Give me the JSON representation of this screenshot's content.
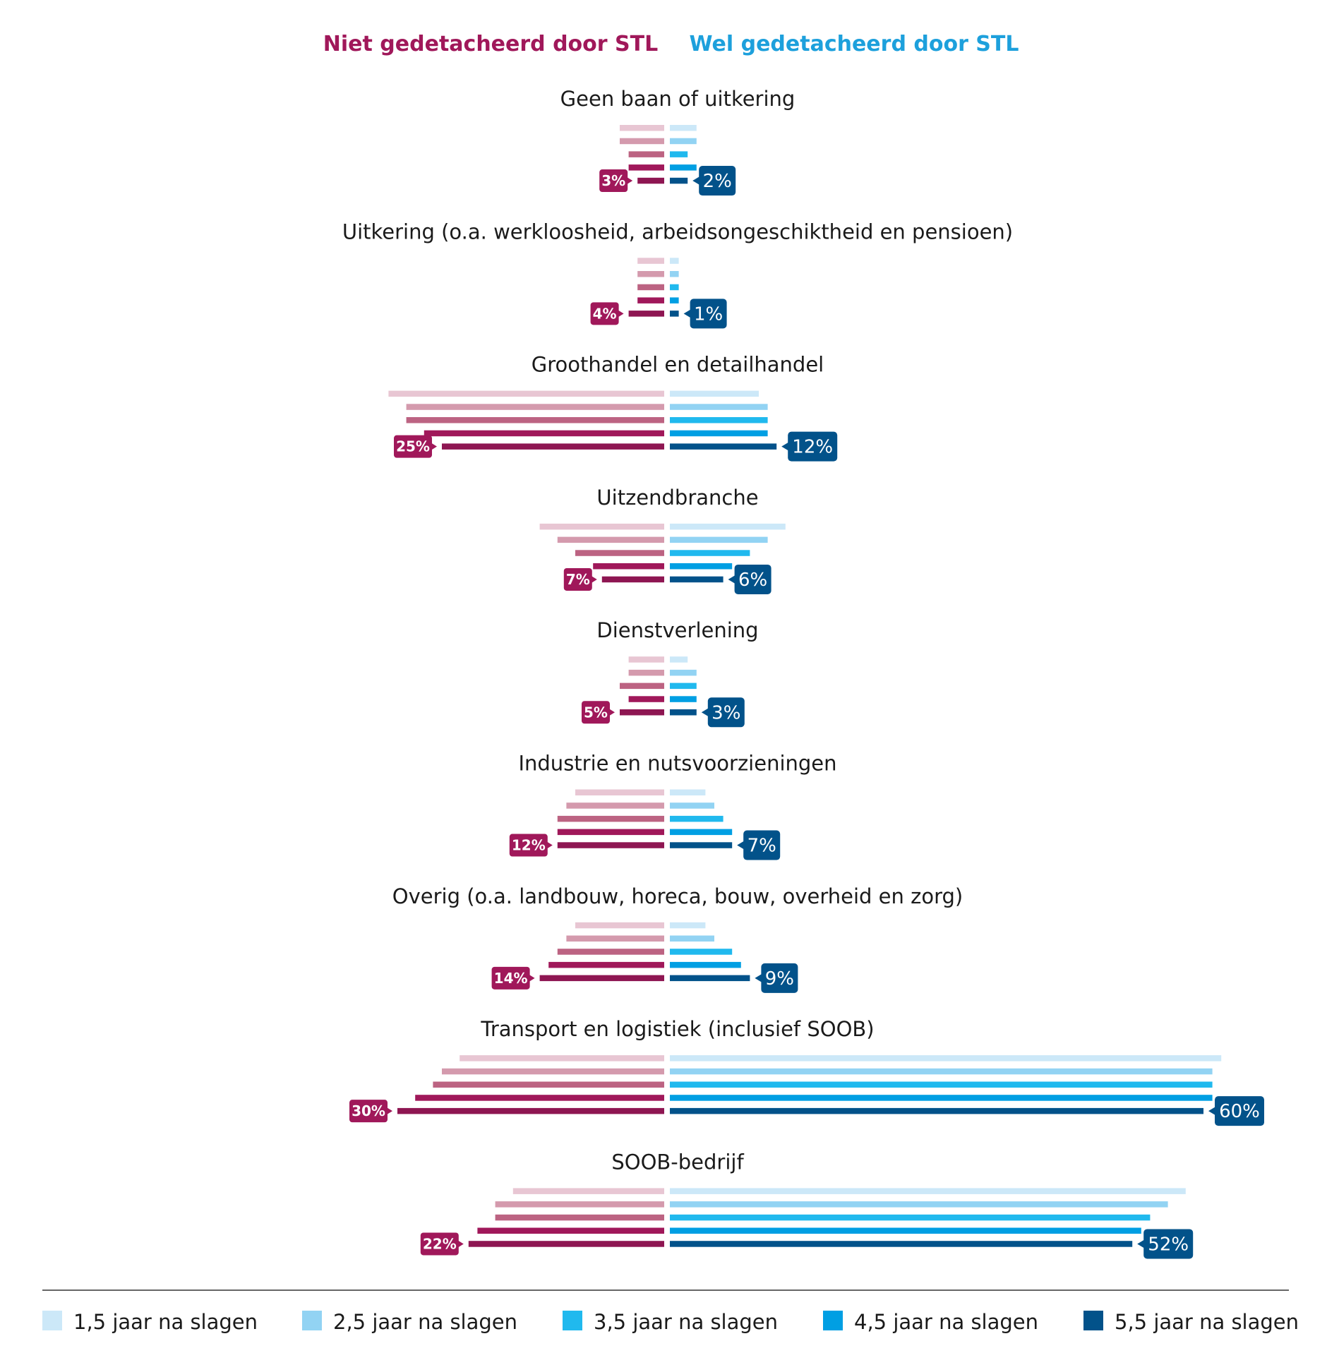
{
  "chart_data": {
    "type": "bar",
    "subtype": "diverging-grouped-horizontal",
    "title": "",
    "left_group_title": "Niet gedetacheerd door STL",
    "right_group_title": "Wel gedetacheerd door STL",
    "unit": "%",
    "series": [
      {
        "name": "1,5 jaar na slagen",
        "left_color": "#e8c6d3",
        "right_color": "#cce8f8"
      },
      {
        "name": "2,5 jaar na slagen",
        "left_color": "#d49aad",
        "right_color": "#92d3f3"
      },
      {
        "name": "3,5 jaar na slagen",
        "left_color": "#bc6382",
        "right_color": "#20b9ee"
      },
      {
        "name": "4,5 jaar na slagen",
        "left_color": "#a0185a",
        "right_color": "#009fe3"
      },
      {
        "name": "5,5 jaar na slagen",
        "left_color": "#8e1652",
        "right_color": "#02528a"
      }
    ],
    "categories": [
      {
        "label": "Geen baan of uitkering",
        "niet": [
          5,
          5,
          4,
          4,
          3
        ],
        "wel": [
          3,
          3,
          2,
          3,
          2
        ],
        "niet_label": "3%",
        "wel_label": "2%"
      },
      {
        "label": "Uitkering (o.a. werkloosheid, arbeidsongeschiktheid en pensioen)",
        "niet": [
          3,
          3,
          3,
          3,
          4
        ],
        "wel": [
          1,
          1,
          1,
          1,
          1
        ],
        "niet_label": "4%",
        "wel_label": "1%"
      },
      {
        "label": "Groothandel en detailhandel",
        "niet": [
          31,
          29,
          29,
          27,
          25
        ],
        "wel": [
          10,
          11,
          11,
          11,
          12
        ],
        "niet_label": "25%",
        "wel_label": "12%"
      },
      {
        "label": "Uitzendbranche",
        "niet": [
          14,
          12,
          10,
          8,
          7
        ],
        "wel": [
          13,
          11,
          9,
          7,
          6
        ],
        "niet_label": "7%",
        "wel_label": "6%"
      },
      {
        "label": "Dienstverlening",
        "niet": [
          4,
          4,
          5,
          4,
          5
        ],
        "wel": [
          2,
          3,
          3,
          3,
          3
        ],
        "niet_label": "5%",
        "wel_label": "3%"
      },
      {
        "label": "Industrie en nutsvoorzieningen",
        "niet": [
          10,
          11,
          12,
          12,
          12
        ],
        "wel": [
          4,
          5,
          6,
          7,
          7
        ],
        "niet_label": "12%",
        "wel_label": "7%"
      },
      {
        "label": "Overig (o.a. landbouw, horeca, bouw, overheid en zorg)",
        "niet": [
          10,
          11,
          12,
          13,
          14
        ],
        "wel": [
          4,
          5,
          7,
          8,
          9
        ],
        "niet_label": "14%",
        "wel_label": "9%"
      },
      {
        "label": "Transport en logistiek (inclusief SOOB)",
        "niet": [
          23,
          25,
          26,
          28,
          30
        ],
        "wel": [
          62,
          61,
          61,
          61,
          60
        ],
        "niet_label": "30%",
        "wel_label": "60%"
      },
      {
        "label": "SOOB-bedrijf",
        "niet": [
          17,
          19,
          19,
          21,
          22
        ],
        "wel": [
          58,
          56,
          54,
          53,
          52
        ],
        "niet_label": "22%",
        "wel_label": "52%"
      }
    ],
    "legend_position": "bottom",
    "grid": false
  },
  "colors": {
    "niet_title": "#a0185a",
    "wel_title": "#1da0dc",
    "niet_label_bg": "#a0185a",
    "wel_label_bg": "#02528a"
  }
}
